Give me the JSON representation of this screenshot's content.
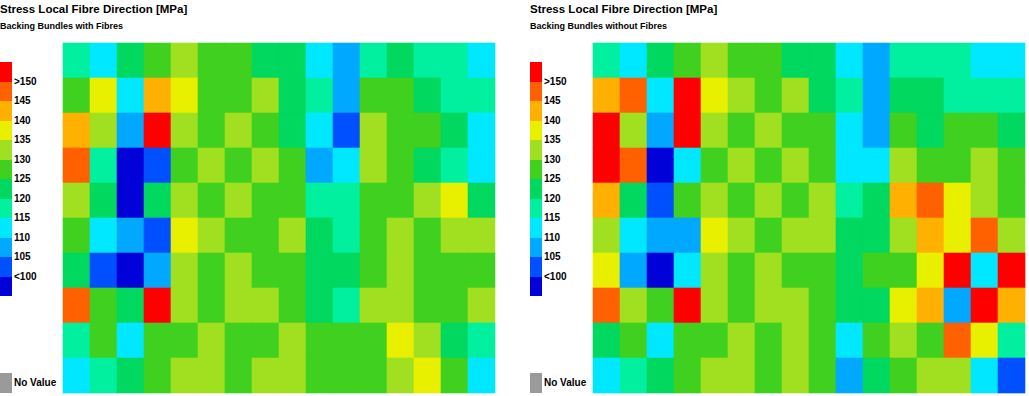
{
  "chart_data": [
    {
      "type": "heatmap",
      "title": "Stress Local Fibre Direction [MPa]",
      "subtitle": "Backing Bundles with Fibres",
      "tick_labels": false,
      "cells": [
        [
          117,
          112,
          122,
          127,
          132,
          127,
          127,
          122,
          122,
          112,
          107,
          117,
          122,
          117,
          117,
          112
        ],
        [
          127,
          137,
          112,
          142,
          137,
          127,
          127,
          132,
          122,
          117,
          107,
          127,
          127,
          122,
          117,
          117
        ],
        [
          142,
          132,
          107,
          155,
          132,
          127,
          132,
          127,
          122,
          112,
          102,
          132,
          127,
          127,
          122,
          112
        ],
        [
          147,
          117,
          95,
          102,
          127,
          132,
          127,
          132,
          127,
          107,
          112,
          132,
          127,
          122,
          117,
          112
        ],
        [
          132,
          122,
          95,
          122,
          132,
          127,
          132,
          127,
          127,
          117,
          117,
          127,
          127,
          132,
          137,
          122
        ],
        [
          127,
          112,
          107,
          102,
          137,
          132,
          127,
          127,
          132,
          122,
          117,
          127,
          132,
          127,
          132,
          132
        ],
        [
          122,
          102,
          95,
          107,
          132,
          127,
          132,
          127,
          127,
          122,
          122,
          127,
          132,
          127,
          127,
          127
        ],
        [
          147,
          127,
          122,
          155,
          132,
          127,
          132,
          132,
          127,
          122,
          117,
          132,
          132,
          127,
          127,
          132
        ],
        [
          117,
          127,
          112,
          127,
          127,
          132,
          127,
          127,
          132,
          127,
          127,
          127,
          137,
          132,
          122,
          117
        ],
        [
          112,
          117,
          122,
          127,
          132,
          132,
          127,
          132,
          132,
          127,
          127,
          127,
          132,
          137,
          127,
          112
        ]
      ],
      "colorbar": {
        "range": [
          100,
          150
        ],
        "ticks": [
          {
            "value": 100,
            "label": "<100"
          },
          105,
          110,
          115,
          120,
          125,
          130,
          135,
          140,
          145,
          {
            "value": 150,
            "label": ">150"
          }
        ],
        "colors": [
          "#0000d8",
          "#0050ff",
          "#00a8ff",
          "#00e8ff",
          "#00f0a0",
          "#00d860",
          "#40d020",
          "#a0e020",
          "#e8f000",
          "#ffb000",
          "#ff6000",
          "#ff0000"
        ],
        "no_value_label": "No Value",
        "no_value_color": "#9a9a9a"
      }
    },
    {
      "type": "heatmap",
      "title": "Stress Local Fibre Direction [MPa]",
      "subtitle": "Backing Bundles without Fibres",
      "tick_labels": false,
      "cells": [
        [
          117,
          112,
          122,
          127,
          132,
          127,
          127,
          122,
          122,
          112,
          107,
          117,
          117,
          117,
          112,
          112
        ],
        [
          142,
          147,
          112,
          155,
          137,
          132,
          127,
          132,
          122,
          117,
          107,
          122,
          122,
          117,
          117,
          117
        ],
        [
          155,
          132,
          107,
          155,
          132,
          127,
          132,
          127,
          127,
          112,
          107,
          127,
          122,
          127,
          127,
          122
        ],
        [
          155,
          147,
          95,
          112,
          127,
          132,
          127,
          132,
          127,
          112,
          112,
          132,
          127,
          127,
          132,
          127
        ],
        [
          142,
          122,
          102,
          127,
          132,
          127,
          132,
          127,
          132,
          117,
          122,
          142,
          147,
          137,
          132,
          127
        ],
        [
          132,
          112,
          107,
          107,
          137,
          132,
          127,
          132,
          132,
          122,
          122,
          132,
          142,
          137,
          147,
          132
        ],
        [
          137,
          107,
          95,
          112,
          132,
          127,
          132,
          127,
          127,
          122,
          127,
          127,
          137,
          155,
          112,
          155
        ],
        [
          147,
          132,
          127,
          155,
          132,
          127,
          132,
          132,
          127,
          122,
          122,
          137,
          142,
          107,
          155,
          142
        ],
        [
          122,
          127,
          112,
          127,
          127,
          132,
          127,
          132,
          127,
          112,
          127,
          132,
          127,
          147,
          137,
          117
        ],
        [
          112,
          117,
          122,
          127,
          132,
          132,
          127,
          132,
          127,
          107,
          122,
          127,
          132,
          132,
          112,
          102
        ]
      ],
      "colorbar": {
        "range": [
          100,
          150
        ],
        "ticks": [
          {
            "value": 100,
            "label": "<100"
          },
          105,
          110,
          115,
          120,
          125,
          130,
          135,
          140,
          145,
          {
            "value": 150,
            "label": ">150"
          }
        ],
        "colors": [
          "#0000d8",
          "#0050ff",
          "#00a8ff",
          "#00e8ff",
          "#00f0a0",
          "#00d860",
          "#40d020",
          "#a0e020",
          "#e8f000",
          "#ffb000",
          "#ff6000",
          "#ff0000"
        ],
        "no_value_label": "No Value",
        "no_value_color": "#9a9a9a"
      }
    }
  ]
}
